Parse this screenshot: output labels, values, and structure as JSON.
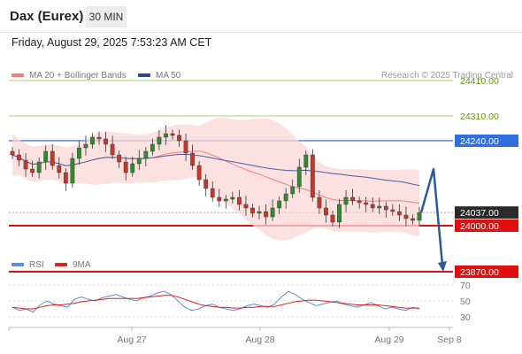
{
  "header": {
    "instrument": "Dax (Eurex)",
    "timeframe": "30 MIN",
    "datetime": "Friday, August 29, 2025 7:53:23 AM CET"
  },
  "legend": {
    "ma20": {
      "label": "MA 20 + Bollinger Bands",
      "color": "#f08080"
    },
    "ma50": {
      "label": "MA 50",
      "color": "#2a4b8d"
    },
    "rsi": {
      "label": "RSI",
      "color": "#5b8fd6"
    },
    "ma9": {
      "label": "9MA",
      "color": "#e02020"
    }
  },
  "credit": "Research © 2025 Trading Central",
  "chart_data": {
    "type": "candlestick",
    "instrument": "Dax (Eurex)",
    "interval": "30 MIN",
    "x_labels": [
      "Aug 27",
      "Aug 28",
      "Aug 29",
      "Sep 8"
    ],
    "levels": [
      {
        "label": "24410.00",
        "value": 24410,
        "kind": "resistance-thin",
        "color": "#8fc43a"
      },
      {
        "label": "24310.00",
        "value": 24310,
        "kind": "resistance-thin",
        "color": "#8fc43a"
      },
      {
        "label": "24240.00",
        "value": 24240,
        "kind": "pivot",
        "color": "#2f6fe0"
      },
      {
        "label": "24037.00",
        "value": 24037,
        "kind": "last-price",
        "color": "#2a2a2a"
      },
      {
        "label": "24000.00",
        "value": 24000,
        "kind": "support",
        "color": "#e01010"
      },
      {
        "label": "23870.00",
        "value": 23870,
        "kind": "support",
        "color": "#e01010"
      }
    ],
    "close_approx": [
      24200,
      24185,
      24160,
      24150,
      24180,
      24210,
      24170,
      24150,
      24120,
      24190,
      24220,
      24230,
      24250,
      24245,
      24230,
      24200,
      24180,
      24150,
      24175,
      24190,
      24210,
      24230,
      24250,
      24260,
      24255,
      24240,
      24205,
      24170,
      24130,
      24105,
      24080,
      24070,
      24075,
      24080,
      24060,
      24050,
      24035,
      24040,
      24025,
      24050,
      24070,
      24090,
      24110,
      24165,
      24200,
      24080,
      24050,
      24030,
      24010,
      24060,
      24080,
      24070,
      24065,
      24060,
      24050,
      24055,
      24045,
      24040,
      24030,
      24020,
      24015,
      24037
    ],
    "projection": {
      "from": 24037,
      "up_to": 24160,
      "down_to": 23870
    },
    "rsi": {
      "levels": [
        70,
        50,
        30
      ],
      "values": [
        42,
        38,
        40,
        36,
        45,
        50,
        46,
        44,
        42,
        52,
        55,
        52,
        50,
        54,
        56,
        58,
        55,
        52,
        50,
        54,
        56,
        60,
        62,
        58,
        50,
        42,
        38,
        40,
        44,
        46,
        42,
        40,
        38,
        40,
        44,
        46,
        44,
        42,
        46,
        55,
        62,
        58,
        52,
        48,
        44,
        46,
        48,
        50,
        46,
        44,
        42,
        45,
        48,
        44,
        40,
        42,
        40,
        38,
        42,
        40
      ],
      "ma9": [
        42,
        41,
        40,
        40,
        42,
        44,
        45,
        45,
        46,
        47,
        49,
        50,
        51,
        52,
        53,
        53,
        53,
        53,
        53,
        54,
        55,
        56,
        57,
        57,
        55,
        52,
        49,
        46,
        44,
        43,
        42,
        42,
        41,
        41,
        42,
        42,
        43,
        43,
        43,
        45,
        47,
        49,
        50,
        51,
        51,
        50,
        49,
        48,
        47,
        46,
        45,
        45,
        45,
        45,
        44,
        43,
        42,
        41,
        41,
        41
      ]
    }
  }
}
